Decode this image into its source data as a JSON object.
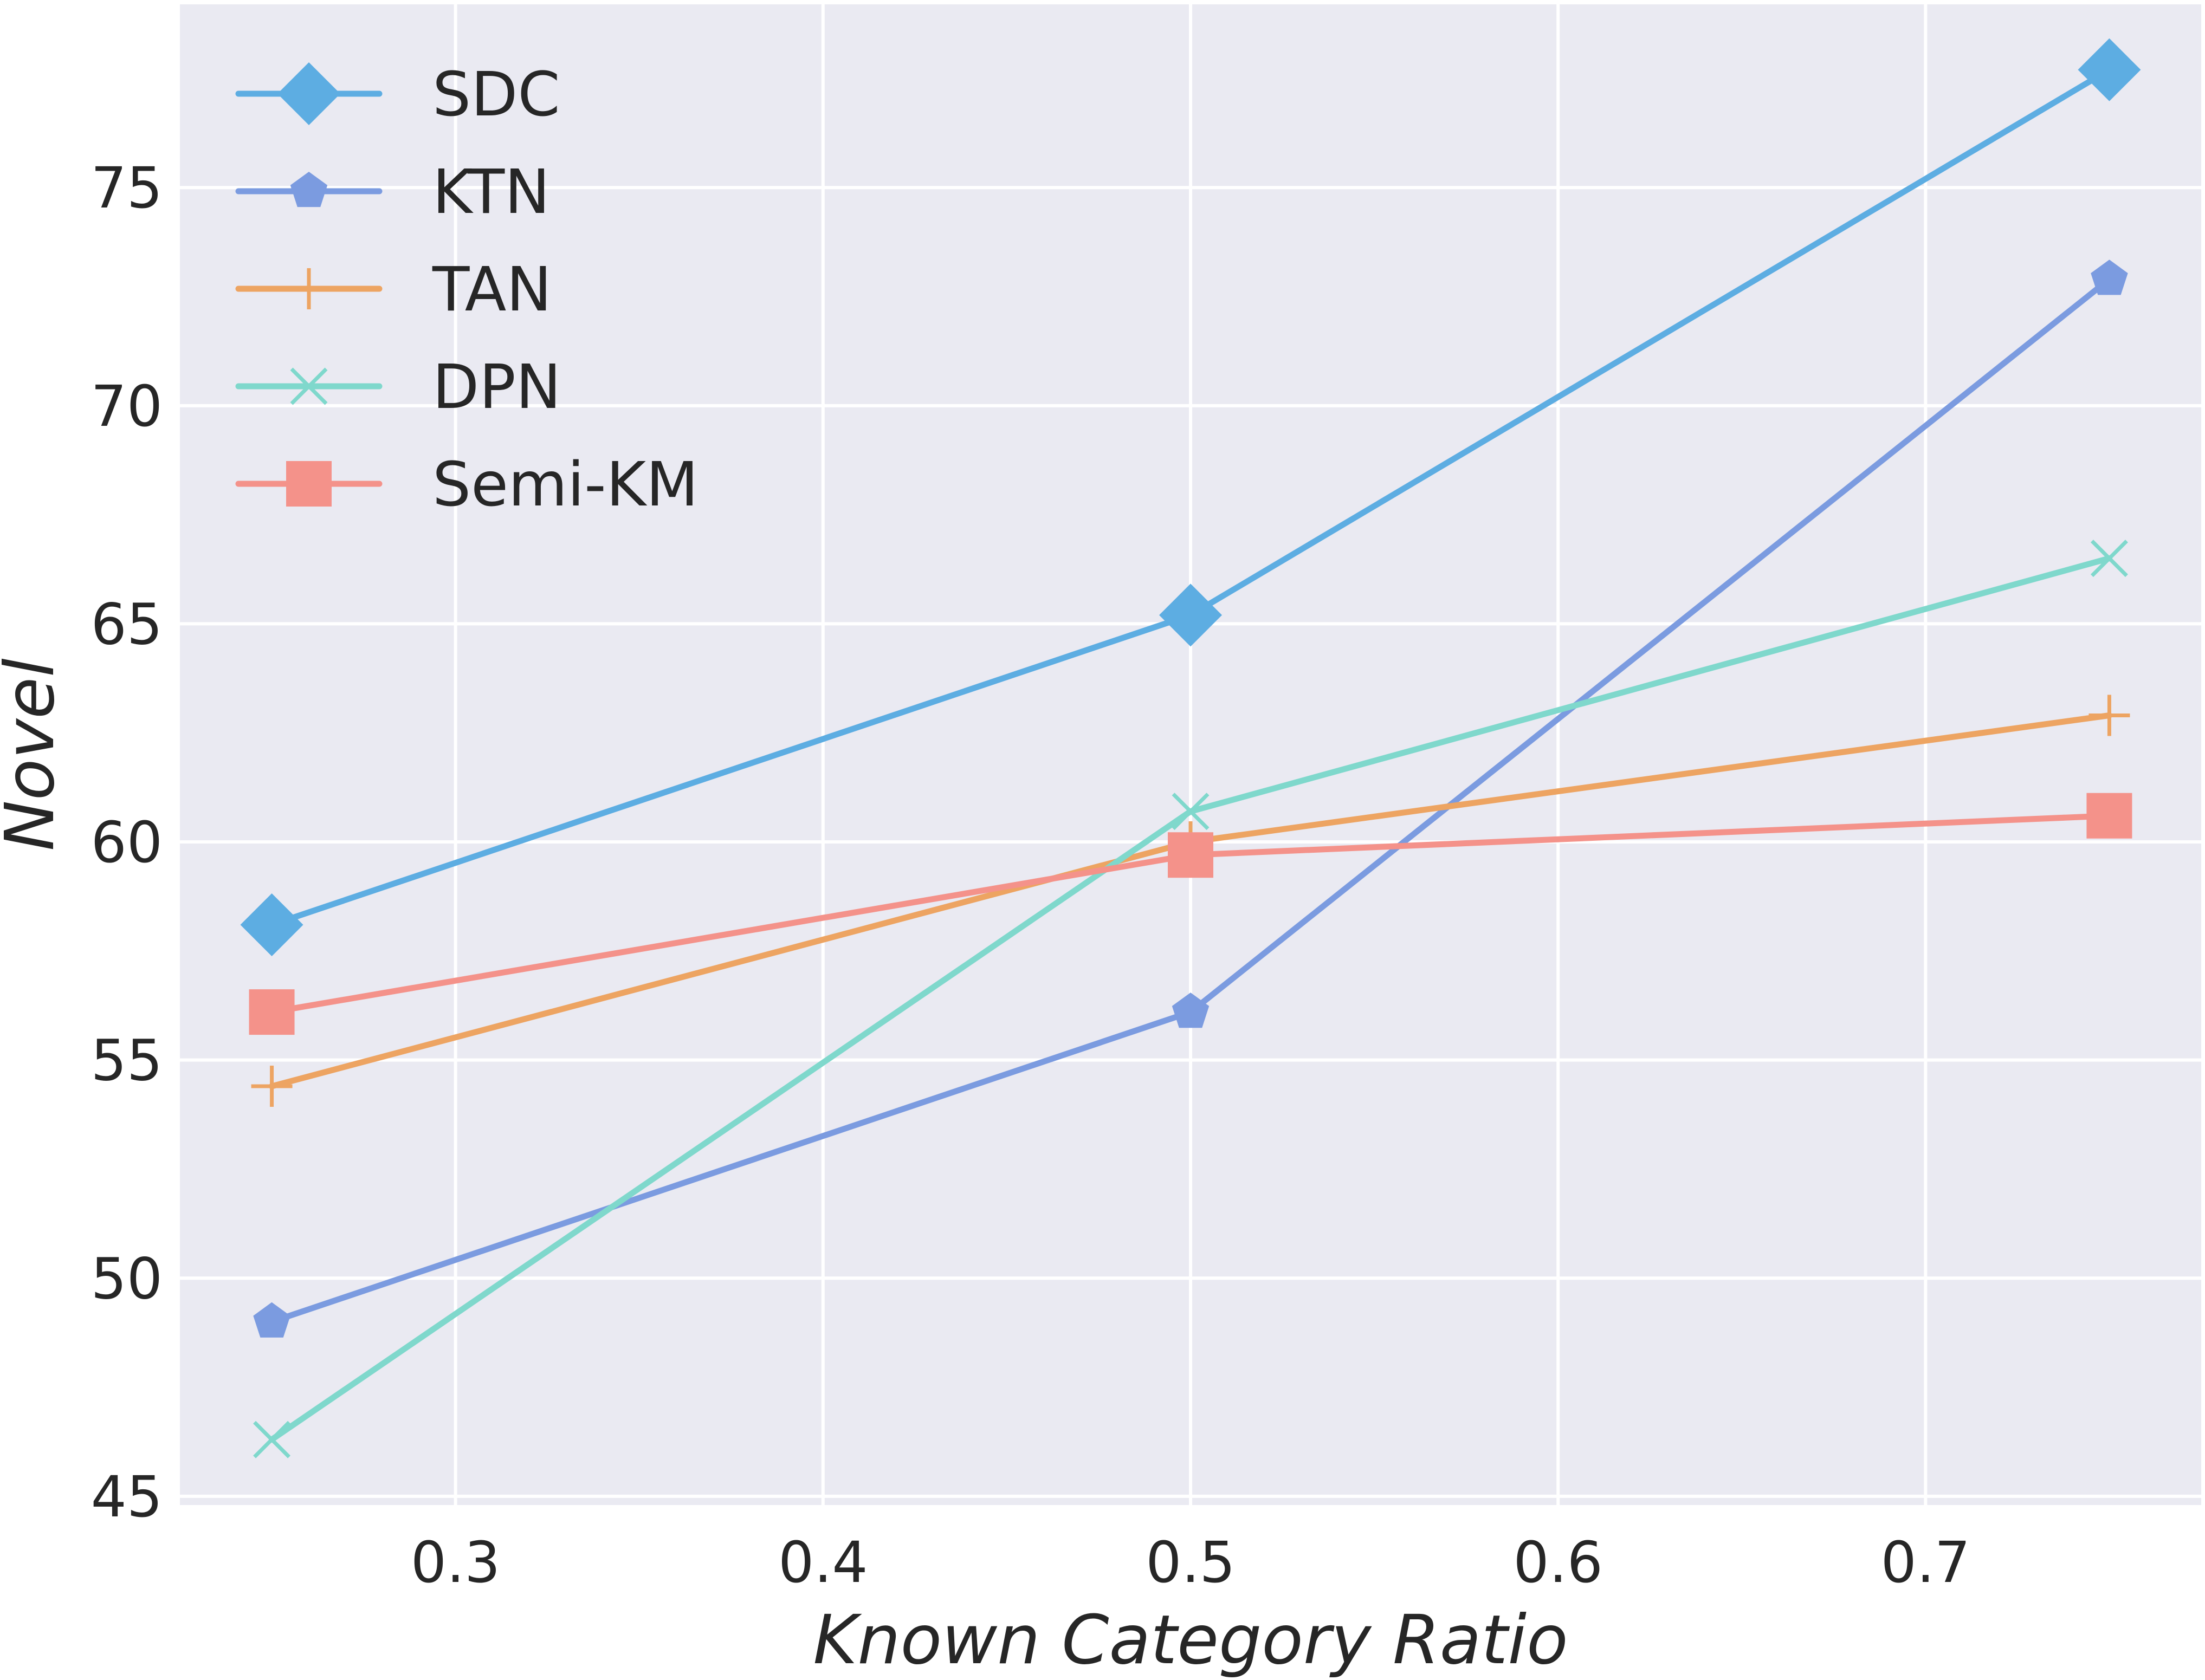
{
  "chart_data": {
    "type": "line",
    "xlabel": "Known Category Ratio",
    "ylabel": "Novel",
    "xlim": [
      0.225,
      0.775
    ],
    "ylim": [
      44.8,
      79.2
    ],
    "xticks": [
      0.3,
      0.4,
      0.5,
      0.6,
      0.7
    ],
    "xtick_labels": [
      "0.3",
      "0.4",
      "0.5",
      "0.6",
      "0.7"
    ],
    "yticks": [
      45,
      50,
      55,
      60,
      65,
      70,
      75
    ],
    "ytick_labels": [
      "45",
      "50",
      "55",
      "60",
      "65",
      "70",
      "75"
    ],
    "grid": true,
    "legend_position": "top-left",
    "x": [
      0.25,
      0.5,
      0.75
    ],
    "series": [
      {
        "name": "SDC",
        "values": [
          58.1,
          65.2,
          77.7
        ],
        "color": "#5dade2",
        "marker": "diamond"
      },
      {
        "name": "KTN",
        "values": [
          49.0,
          56.1,
          72.9
        ],
        "color": "#7b9be0",
        "marker": "pentagon"
      },
      {
        "name": "TAN",
        "values": [
          54.4,
          60.0,
          62.9
        ],
        "color": "#eda462",
        "marker": "plus"
      },
      {
        "name": "DPN",
        "values": [
          46.3,
          60.7,
          66.5
        ],
        "color": "#7fd8cc",
        "marker": "x"
      },
      {
        "name": "Semi-KM",
        "values": [
          56.1,
          59.7,
          60.6
        ],
        "color": "#f4928a",
        "marker": "square"
      }
    ]
  }
}
